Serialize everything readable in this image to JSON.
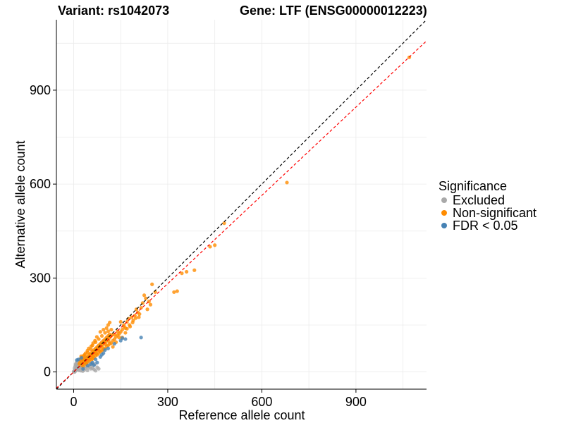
{
  "chart_data": {
    "type": "scatter",
    "title_left": "Variant: rs1042073",
    "title_right": "Gene: LTF (ENSG00000012223)",
    "xlabel": "Reference allele count",
    "ylabel": "Alternative allele count",
    "xlim": [
      -55,
      1125
    ],
    "ylim": [
      -55,
      1125
    ],
    "xticks": [
      0,
      300,
      600,
      900
    ],
    "yticks": [
      0,
      300,
      600,
      900
    ],
    "grid": true,
    "reference_lines": [
      {
        "name": "identity",
        "slope": 1.0,
        "intercept": 0,
        "color": "#000000",
        "style": "dashed"
      },
      {
        "name": "fitted",
        "slope": 0.94,
        "intercept": 0,
        "color": "#ff0000",
        "style": "dashed"
      }
    ],
    "legend": {
      "title": "Significance",
      "position": "right",
      "entries": [
        {
          "label": "Excluded",
          "color": "#a9a9a9"
        },
        {
          "label": "Non-significant",
          "color": "#ff8c00"
        },
        {
          "label": "FDR < 0.05",
          "color": "#4682b4"
        }
      ]
    },
    "series": [
      {
        "name": "Excluded",
        "color": "#a9a9a9",
        "points": [
          [
            2,
            3
          ],
          [
            4,
            6
          ],
          [
            6,
            4
          ],
          [
            8,
            10
          ],
          [
            10,
            7
          ],
          [
            12,
            14
          ],
          [
            3,
            12
          ],
          [
            5,
            18
          ],
          [
            7,
            22
          ],
          [
            9,
            15
          ],
          [
            11,
            25
          ],
          [
            13,
            18
          ],
          [
            15,
            28
          ],
          [
            14,
            9
          ],
          [
            18,
            12
          ],
          [
            20,
            22
          ],
          [
            22,
            16
          ],
          [
            16,
            34
          ],
          [
            19,
            30
          ],
          [
            24,
            20
          ],
          [
            26,
            28
          ],
          [
            28,
            35
          ],
          [
            30,
            24
          ],
          [
            32,
            40
          ],
          [
            25,
            38
          ],
          [
            21,
            42
          ],
          [
            35,
            30
          ],
          [
            38,
            18
          ],
          [
            40,
            26
          ],
          [
            45,
            14
          ],
          [
            50,
            22
          ],
          [
            60,
            12
          ],
          [
            65,
            8
          ],
          [
            70,
            4
          ],
          [
            55,
            10
          ],
          [
            42,
            36
          ],
          [
            48,
            44
          ],
          [
            36,
            48
          ],
          [
            30,
            45
          ],
          [
            27,
            10
          ],
          [
            17,
            5
          ],
          [
            23,
            4
          ],
          [
            33,
            6
          ],
          [
            44,
            5
          ],
          [
            52,
            16
          ],
          [
            58,
            28
          ],
          [
            62,
            20
          ],
          [
            75,
            15
          ],
          [
            80,
            10
          ],
          [
            68,
            25
          ],
          [
            6,
            25
          ],
          [
            9,
            30
          ],
          [
            12,
            35
          ],
          [
            4,
            1
          ],
          [
            1,
            2
          ],
          [
            0,
            1
          ],
          [
            3,
            0
          ],
          [
            37,
            12
          ],
          [
            29,
            3
          ],
          [
            46,
            31
          ]
        ]
      },
      {
        "name": "Non-significant",
        "color": "#ff8c00",
        "points": [
          [
            20,
            30
          ],
          [
            25,
            35
          ],
          [
            30,
            38
          ],
          [
            35,
            42
          ],
          [
            40,
            45
          ],
          [
            45,
            50
          ],
          [
            50,
            55
          ],
          [
            55,
            60
          ],
          [
            60,
            65
          ],
          [
            65,
            70
          ],
          [
            70,
            75
          ],
          [
            75,
            80
          ],
          [
            80,
            85
          ],
          [
            85,
            90
          ],
          [
            90,
            95
          ],
          [
            95,
            100
          ],
          [
            100,
            105
          ],
          [
            105,
            110
          ],
          [
            110,
            115
          ],
          [
            115,
            120
          ],
          [
            28,
            22
          ],
          [
            33,
            28
          ],
          [
            38,
            33
          ],
          [
            43,
            38
          ],
          [
            48,
            43
          ],
          [
            53,
            48
          ],
          [
            58,
            53
          ],
          [
            63,
            58
          ],
          [
            68,
            63
          ],
          [
            73,
            68
          ],
          [
            78,
            73
          ],
          [
            83,
            78
          ],
          [
            88,
            83
          ],
          [
            93,
            88
          ],
          [
            98,
            93
          ],
          [
            103,
            98
          ],
          [
            108,
            103
          ],
          [
            113,
            108
          ],
          [
            118,
            113
          ],
          [
            123,
            118
          ],
          [
            35,
            55
          ],
          [
            45,
            62
          ],
          [
            55,
            72
          ],
          [
            60,
            85
          ],
          [
            70,
            95
          ],
          [
            80,
            105
          ],
          [
            90,
            115
          ],
          [
            100,
            125
          ],
          [
            110,
            130
          ],
          [
            120,
            135
          ],
          [
            30,
            18
          ],
          [
            40,
            25
          ],
          [
            50,
            35
          ],
          [
            60,
            42
          ],
          [
            70,
            52
          ],
          [
            80,
            60
          ],
          [
            90,
            68
          ],
          [
            100,
            75
          ],
          [
            110,
            85
          ],
          [
            120,
            92
          ],
          [
            42,
            30
          ],
          [
            52,
            40
          ],
          [
            62,
            50
          ],
          [
            72,
            58
          ],
          [
            82,
            68
          ],
          [
            92,
            78
          ],
          [
            102,
            88
          ],
          [
            112,
            98
          ],
          [
            65,
            45
          ],
          [
            75,
            55
          ],
          [
            85,
            65
          ],
          [
            95,
            72
          ],
          [
            105,
            82
          ],
          [
            115,
            90
          ],
          [
            125,
            100
          ],
          [
            130,
            105
          ],
          [
            135,
            112
          ],
          [
            140,
            118
          ],
          [
            145,
            122
          ],
          [
            150,
            128
          ],
          [
            125,
            80
          ],
          [
            135,
            95
          ],
          [
            145,
            110
          ],
          [
            155,
            135
          ],
          [
            160,
            150
          ],
          [
            165,
            140
          ],
          [
            170,
            160
          ],
          [
            175,
            170
          ],
          [
            180,
            145
          ],
          [
            185,
            175
          ],
          [
            190,
            165
          ],
          [
            195,
            180
          ],
          [
            200,
            200
          ],
          [
            205,
            190
          ],
          [
            210,
            185
          ],
          [
            215,
            205
          ],
          [
            220,
            220
          ],
          [
            225,
            245
          ],
          [
            230,
            235
          ],
          [
            240,
            225
          ],
          [
            250,
            280
          ],
          [
            260,
            255
          ],
          [
            245,
            215
          ],
          [
            235,
            200
          ],
          [
            155,
            110
          ],
          [
            165,
            125
          ],
          [
            170,
            138
          ],
          [
            178,
            150
          ],
          [
            188,
            158
          ],
          [
            198,
            172
          ],
          [
            208,
            175
          ],
          [
            150,
            160
          ],
          [
            140,
            130
          ],
          [
            160,
            145
          ],
          [
            130,
            120
          ],
          [
            22,
            40
          ],
          [
            18,
            25
          ],
          [
            26,
            46
          ],
          [
            32,
            52
          ],
          [
            38,
            60
          ],
          [
            44,
            68
          ],
          [
            48,
            75
          ],
          [
            56,
            82
          ],
          [
            62,
            92
          ],
          [
            68,
            100
          ],
          [
            74,
            112
          ],
          [
            85,
            128
          ],
          [
            95,
            135
          ],
          [
            105,
            140
          ],
          [
            110,
            150
          ],
          [
            115,
            158
          ],
          [
            320,
            255
          ],
          [
            330,
            258
          ],
          [
            345,
            315
          ],
          [
            360,
            320
          ],
          [
            385,
            325
          ],
          [
            435,
            400
          ],
          [
            450,
            405
          ],
          [
            480,
            475
          ],
          [
            680,
            605
          ],
          [
            1070,
            1005
          ],
          [
            24,
            50
          ],
          [
            30,
            30
          ],
          [
            36,
            36
          ],
          [
            46,
            46
          ],
          [
            54,
            54
          ],
          [
            66,
            66
          ],
          [
            76,
            76
          ],
          [
            86,
            86
          ],
          [
            96,
            96
          ],
          [
            58,
            40
          ]
        ]
      },
      {
        "name": "FDR < 0.05",
        "color": "#4682b4",
        "points": [
          [
            15,
            40
          ],
          [
            25,
            45
          ],
          [
            30,
            10
          ],
          [
            45,
            20
          ],
          [
            55,
            25
          ],
          [
            60,
            30
          ],
          [
            65,
            22
          ],
          [
            70,
            40
          ],
          [
            75,
            30
          ],
          [
            85,
            48
          ],
          [
            90,
            55
          ],
          [
            95,
            60
          ],
          [
            100,
            70
          ],
          [
            110,
            75
          ],
          [
            130,
            90
          ],
          [
            150,
            100
          ],
          [
            155,
            108
          ],
          [
            165,
            105
          ],
          [
            215,
            110
          ],
          [
            10,
            38
          ]
        ]
      }
    ]
  }
}
